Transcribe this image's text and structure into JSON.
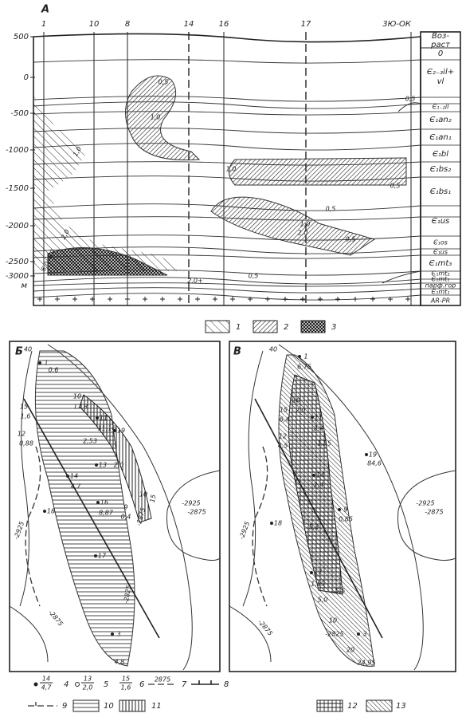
{
  "section": {
    "label": "А",
    "wells": [
      "1",
      "10",
      "8",
      "14",
      "16",
      "17",
      "3Ю-ОК"
    ],
    "age_header": [
      "Воз-",
      "раст"
    ],
    "ages": [
      "0",
      [
        "Є₂₋₃il+",
        "vl"
      ],
      "Є₁₋₂il",
      "Є₁an₂",
      "Є₁an₁",
      "Є₁bl",
      "Є₁bs₂",
      "Є₁bs₁",
      "Є₁us",
      "Є₁os",
      "Є₁us",
      "Є₁mt₃",
      "Є₁mt₂",
      "Є₁mt₁",
      "парф.гор",
      "Є₁mt₁",
      "AR-PR"
    ],
    "depths": [
      "500",
      "0",
      "-500",
      "-1000",
      "-1500",
      "-2000",
      "-2500",
      "-3000"
    ],
    "unit": "м",
    "contours": [
      "0,5",
      "1,0",
      "0,5",
      "1,0",
      "1,0",
      "0,5",
      "0,5",
      "1,0",
      "2,0",
      "2,0",
      "4,0",
      "6,0",
      "0,5",
      "2,0+",
      "0,5"
    ]
  },
  "legend_top": [
    "1",
    "2",
    "3"
  ],
  "map_b": {
    "label": "Б",
    "labels": [
      "40",
      "1",
      "0,6",
      "10",
      "17,8",
      "11",
      "11,16",
      "15",
      "1,6",
      "12",
      "0,88",
      "2,53",
      "19",
      "13",
      "2,0",
      "14",
      "4,7",
      "16",
      "8,87",
      "9",
      "0,4",
      "18",
      "17",
      "3",
      "4,8",
      "-2925",
      "-2925",
      "-2875",
      "-2875",
      "-2825",
      "-2875",
      "15",
      "10"
    ]
  },
  "map_v": {
    "label": "В",
    "labels": [
      "40",
      "1",
      "6,75",
      "10",
      "2,0",
      "15",
      "6,4",
      "11",
      "2,4",
      "12",
      "4,5",
      "1,55",
      "19",
      "84,6",
      "14",
      "2,4",
      "9",
      "0,85",
      "5,3",
      "18",
      "17",
      "1,59",
      "5,5",
      "5,0",
      "3",
      "24,95",
      "-2925",
      "-2925",
      "-2875",
      "-2875",
      "-2825",
      "10",
      "20"
    ]
  },
  "legend_bottom": [
    {
      "number": "4",
      "sample": [
        "14",
        "4,7"
      ]
    },
    {
      "number": "5",
      "sample": [
        "13",
        "2,0"
      ]
    },
    {
      "number": "6",
      "sample": [
        "15",
        "1,6"
      ]
    },
    {
      "number": "7",
      "sample": [
        "2875"
      ]
    },
    {
      "number": "8"
    },
    {
      "number": "9"
    },
    {
      "number": "10"
    },
    {
      "number": "11"
    },
    {
      "number": "12"
    },
    {
      "number": "13"
    }
  ]
}
